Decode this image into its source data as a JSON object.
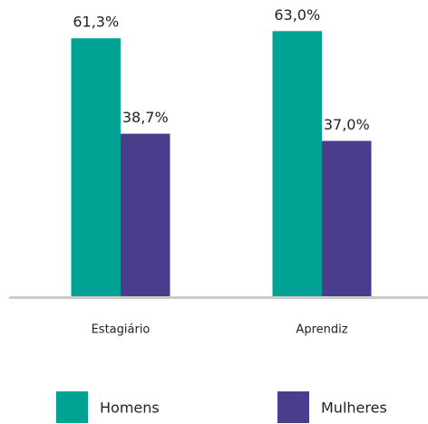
{
  "chart_data": {
    "type": "bar",
    "categories": [
      "Estagiário",
      "Aprendiz"
    ],
    "series": [
      {
        "name": "Homens",
        "color": "#00a393",
        "values": [
          61.3,
          63.0
        ],
        "value_labels": [
          "61,3%",
          "63,0%"
        ]
      },
      {
        "name": "Mulheres",
        "color": "#4b3c8c",
        "values": [
          38.7,
          37.0
        ],
        "value_labels": [
          "38,7%",
          "37,0%"
        ]
      }
    ],
    "ylim": [
      0,
      65
    ]
  }
}
